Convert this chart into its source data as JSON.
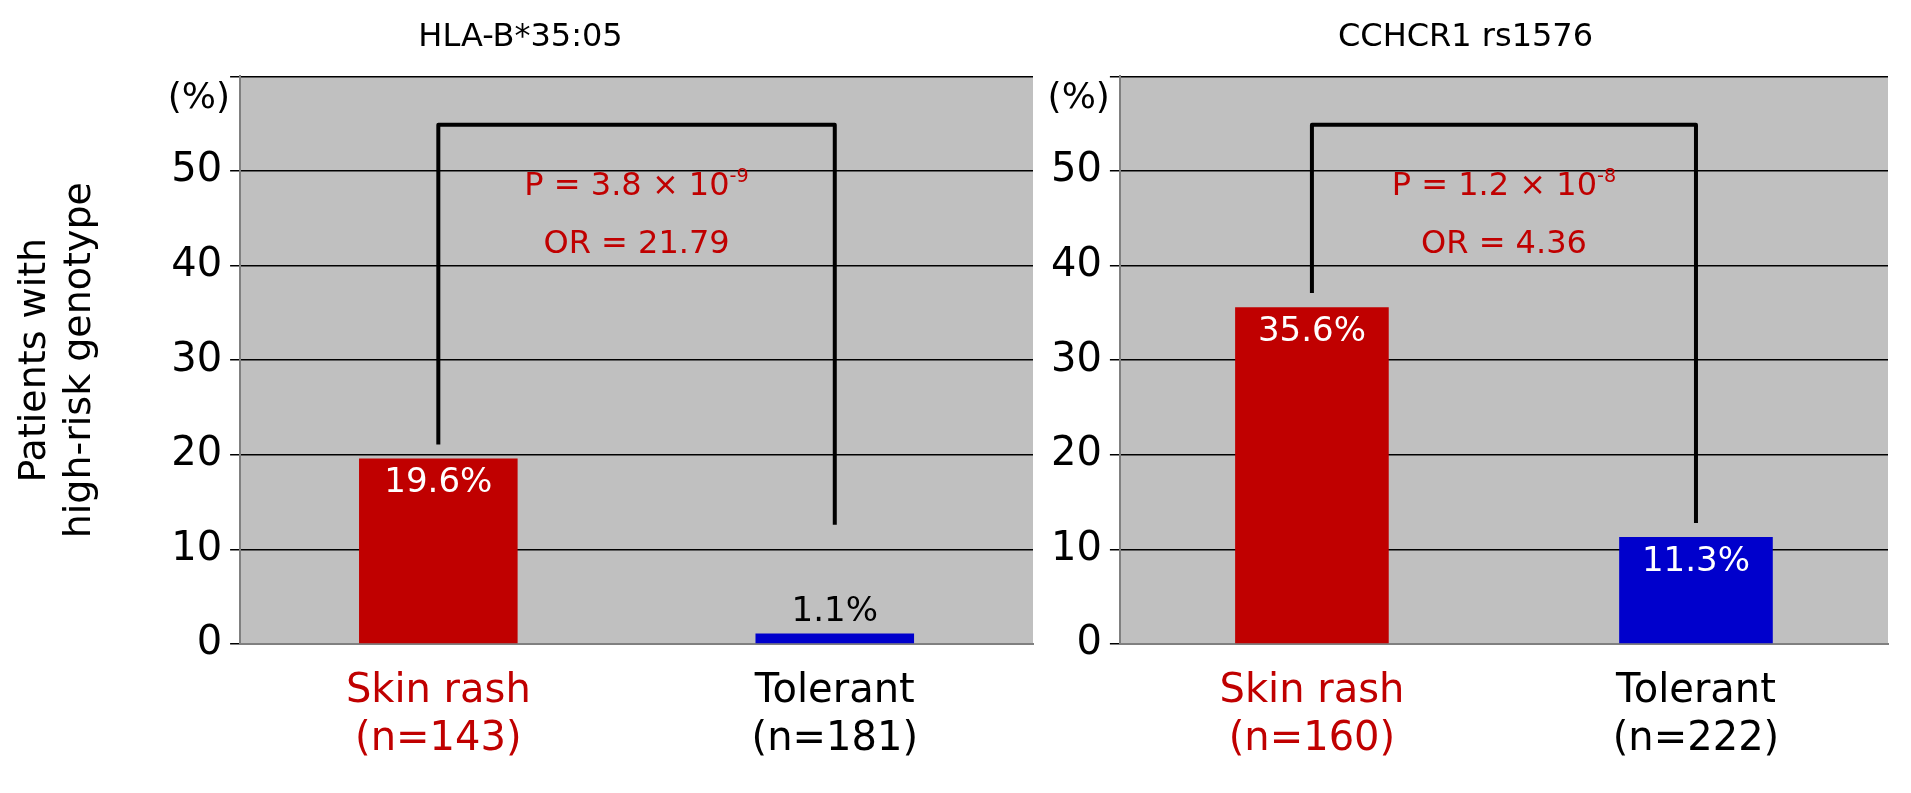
{
  "chart_data": [
    {
      "type": "bar",
      "title": "HLA-B*35:05",
      "ylabel": "Patients with\nhigh-risk genotype",
      "categories": [
        "Skin rash\n(n=143)",
        "Tolerant\n(n=181)"
      ],
      "values": [
        19.6,
        1.1
      ],
      "colors": [
        "#c00000",
        "#0000cc"
      ],
      "value_labels": [
        "19.6%",
        "1.1%"
      ],
      "ylim": [
        0,
        60
      ],
      "yticks": [
        0,
        10,
        20,
        30,
        40,
        50,
        {
          "value": 60,
          "label": null
        }
      ],
      "grid": "y",
      "legend": false,
      "annotations": [
        "(%)",
        "P = 3.8 × 10$^{-9}$",
        "OR = 21.79"
      ]
    },
    {
      "type": "bar",
      "title": "CCHCR1 rs1576",
      "categories": [
        "Skin rash\n(n=160)",
        "Tolerant\n(n=222)"
      ],
      "values": [
        35.6,
        11.3
      ],
      "colors": [
        "#c00000",
        "#0000cc"
      ],
      "value_labels": [
        "35.6%",
        "11.3%"
      ],
      "ylim": [
        0,
        60
      ],
      "yticks": [
        0,
        10,
        20,
        30,
        40,
        50,
        {
          "value": 60,
          "label": null
        }
      ],
      "grid": "y",
      "legend": false,
      "annotations": [
        "(%)",
        "P = 1.2 × 10$^{-8}$",
        "OR = 4.36"
      ]
    }
  ]
}
